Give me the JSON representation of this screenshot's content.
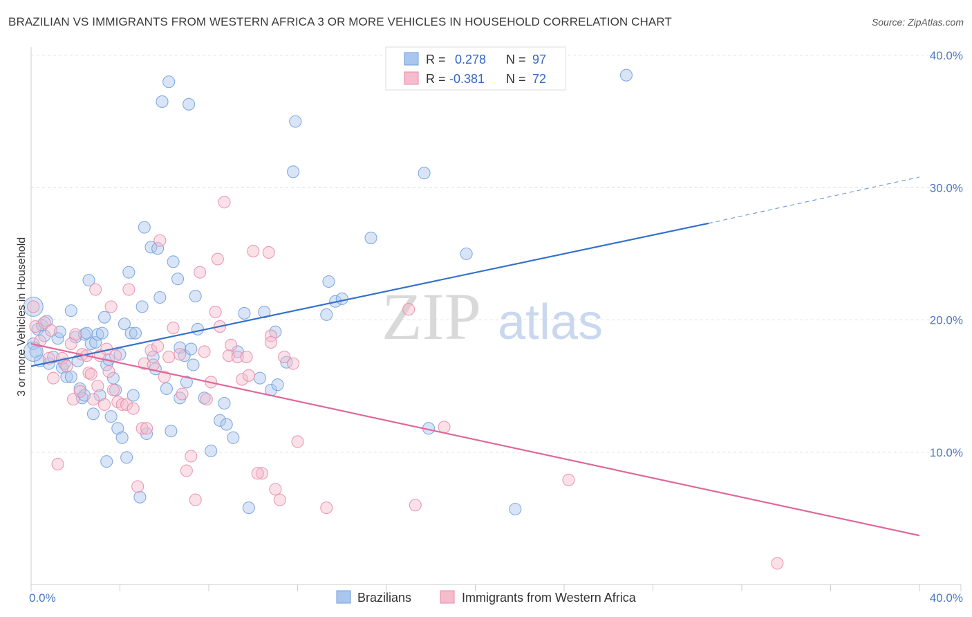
{
  "chart_data": {
    "type": "scatter",
    "title": "BRAZILIAN VS IMMIGRANTS FROM WESTERN AFRICA 3 OR MORE VEHICLES IN HOUSEHOLD CORRELATION CHART",
    "source": "Source: ZipAtlas.com",
    "ylabel": "3 or more Vehicles in Household",
    "xlim": [
      0,
      40
    ],
    "ylim": [
      0,
      40
    ],
    "x_tick_labels": [
      "0.0%",
      "40.0%"
    ],
    "y_tick_labels": [
      "10.0%",
      "20.0%",
      "30.0%",
      "40.0%"
    ],
    "y_ticks": [
      10,
      20,
      30,
      40
    ],
    "watermark": {
      "zip": "ZIP",
      "atlas": "atlas"
    },
    "legend": {
      "r_label": "R =",
      "n_label": "N =",
      "entries": [
        {
          "r": "0.278",
          "n": "97"
        },
        {
          "r": "-0.381",
          "n": "72"
        }
      ]
    },
    "series": [
      {
        "name": "Brazilians",
        "color": "#6f9fdc",
        "fill": "#aac6ee",
        "trend": {
          "x0": 0,
          "y0": 16.5,
          "x1": 30.5,
          "y1": 27.3,
          "dash_to_x": 40,
          "dash_to_y": 30.8
        },
        "points": [
          [
            0.1,
            18.2
          ],
          [
            0.2,
            17.6
          ],
          [
            0.3,
            19.3
          ],
          [
            0.5,
            19.6
          ],
          [
            0.6,
            18.8
          ],
          [
            0.7,
            19.9
          ],
          [
            0.8,
            16.7
          ],
          [
            1.0,
            17.2
          ],
          [
            1.2,
            18.6
          ],
          [
            1.3,
            19.1
          ],
          [
            1.4,
            16.4
          ],
          [
            1.5,
            16.7
          ],
          [
            1.6,
            15.7
          ],
          [
            1.8,
            15.7
          ],
          [
            1.8,
            20.7
          ],
          [
            2.0,
            18.7
          ],
          [
            2.1,
            16.9
          ],
          [
            2.2,
            14.8
          ],
          [
            2.3,
            14.1
          ],
          [
            2.4,
            14.3
          ],
          [
            2.4,
            18.9
          ],
          [
            2.5,
            19.0
          ],
          [
            2.6,
            23.0
          ],
          [
            2.7,
            18.2
          ],
          [
            2.8,
            12.9
          ],
          [
            2.9,
            18.3
          ],
          [
            3.0,
            18.9
          ],
          [
            3.1,
            14.3
          ],
          [
            3.2,
            19.0
          ],
          [
            3.3,
            20.2
          ],
          [
            3.4,
            16.6
          ],
          [
            3.4,
            9.3
          ],
          [
            3.5,
            17.0
          ],
          [
            3.6,
            12.7
          ],
          [
            3.7,
            15.6
          ],
          [
            3.8,
            14.7
          ],
          [
            3.9,
            11.8
          ],
          [
            4.0,
            17.4
          ],
          [
            4.1,
            11.1
          ],
          [
            4.2,
            19.7
          ],
          [
            4.3,
            9.6
          ],
          [
            4.4,
            23.6
          ],
          [
            4.5,
            19.0
          ],
          [
            4.6,
            14.3
          ],
          [
            4.7,
            19.0
          ],
          [
            4.9,
            6.6
          ],
          [
            5.0,
            21.0
          ],
          [
            5.1,
            27.0
          ],
          [
            5.2,
            11.4
          ],
          [
            5.4,
            25.5
          ],
          [
            5.5,
            17.2
          ],
          [
            5.6,
            16.3
          ],
          [
            5.7,
            25.4
          ],
          [
            5.8,
            21.7
          ],
          [
            5.9,
            36.5
          ],
          [
            6.1,
            14.8
          ],
          [
            6.2,
            38.0
          ],
          [
            6.3,
            11.6
          ],
          [
            6.4,
            24.4
          ],
          [
            6.6,
            23.1
          ],
          [
            6.7,
            17.9
          ],
          [
            6.9,
            17.3
          ],
          [
            7.0,
            15.3
          ],
          [
            7.1,
            36.3
          ],
          [
            7.2,
            17.8
          ],
          [
            7.3,
            16.6
          ],
          [
            7.4,
            21.8
          ],
          [
            7.5,
            19.3
          ],
          [
            7.8,
            14.1
          ],
          [
            8.1,
            10.1
          ],
          [
            8.5,
            12.4
          ],
          [
            8.7,
            13.7
          ],
          [
            8.8,
            12.1
          ],
          [
            9.1,
            11.1
          ],
          [
            9.6,
            20.5
          ],
          [
            9.8,
            5.8
          ],
          [
            10.3,
            15.6
          ],
          [
            10.5,
            20.6
          ],
          [
            10.8,
            14.7
          ],
          [
            11.0,
            19.1
          ],
          [
            11.1,
            15.1
          ],
          [
            11.5,
            16.8
          ],
          [
            11.8,
            31.2
          ],
          [
            11.9,
            35.0
          ],
          [
            13.3,
            20.4
          ],
          [
            13.4,
            22.9
          ],
          [
            13.7,
            21.4
          ],
          [
            15.3,
            26.2
          ],
          [
            17.7,
            31.1
          ],
          [
            17.9,
            11.8
          ],
          [
            19.6,
            25.0
          ],
          [
            21.8,
            5.7
          ],
          [
            26.8,
            38.5
          ],
          [
            14.0,
            21.6
          ],
          [
            9.3,
            17.6
          ],
          [
            6.7,
            14.1
          ],
          [
            0.4,
            16.9
          ]
        ],
        "large_points": [
          [
            0.1,
            21.0
          ],
          [
            0.1,
            17.6
          ]
        ]
      },
      {
        "name": "Immigrants from Western Africa",
        "color": "#e98aaa",
        "fill": "#f4bccd",
        "trend": {
          "x0": 0,
          "y0": 18.2,
          "x1": 40,
          "y1": 3.7
        },
        "points": [
          [
            0.2,
            19.5
          ],
          [
            0.4,
            18.4
          ],
          [
            0.6,
            19.8
          ],
          [
            0.8,
            17.1
          ],
          [
            0.9,
            19.2
          ],
          [
            1.0,
            15.6
          ],
          [
            1.2,
            9.1
          ],
          [
            1.4,
            17.1
          ],
          [
            1.6,
            16.5
          ],
          [
            1.8,
            18.2
          ],
          [
            1.9,
            14.0
          ],
          [
            2.0,
            18.9
          ],
          [
            2.2,
            14.6
          ],
          [
            2.3,
            17.4
          ],
          [
            2.5,
            17.3
          ],
          [
            2.6,
            16.0
          ],
          [
            2.7,
            15.9
          ],
          [
            2.8,
            14.0
          ],
          [
            2.9,
            22.3
          ],
          [
            3.0,
            15.0
          ],
          [
            3.1,
            17.3
          ],
          [
            3.3,
            13.6
          ],
          [
            3.4,
            17.8
          ],
          [
            3.5,
            16.1
          ],
          [
            3.6,
            21.0
          ],
          [
            3.7,
            14.7
          ],
          [
            3.8,
            17.3
          ],
          [
            3.9,
            13.8
          ],
          [
            4.1,
            13.6
          ],
          [
            4.3,
            13.6
          ],
          [
            4.4,
            22.3
          ],
          [
            4.6,
            13.3
          ],
          [
            4.8,
            7.4
          ],
          [
            5.0,
            11.8
          ],
          [
            5.1,
            16.7
          ],
          [
            5.2,
            11.8
          ],
          [
            5.4,
            17.7
          ],
          [
            5.5,
            16.6
          ],
          [
            5.7,
            18.0
          ],
          [
            5.8,
            26.0
          ],
          [
            6.0,
            15.7
          ],
          [
            6.2,
            17.2
          ],
          [
            6.4,
            19.4
          ],
          [
            6.7,
            17.4
          ],
          [
            6.8,
            14.4
          ],
          [
            7.0,
            8.6
          ],
          [
            7.2,
            9.7
          ],
          [
            7.4,
            6.4
          ],
          [
            7.6,
            23.6
          ],
          [
            7.8,
            17.6
          ],
          [
            7.9,
            14.0
          ],
          [
            8.1,
            15.3
          ],
          [
            8.3,
            20.6
          ],
          [
            8.4,
            24.6
          ],
          [
            8.7,
            28.9
          ],
          [
            8.9,
            17.3
          ],
          [
            9.0,
            18.1
          ],
          [
            9.3,
            17.2
          ],
          [
            9.5,
            15.5
          ],
          [
            9.8,
            15.8
          ],
          [
            10.0,
            25.2
          ],
          [
            10.4,
            8.4
          ],
          [
            10.7,
            25.1
          ],
          [
            10.8,
            18.8
          ],
          [
            11.0,
            7.2
          ],
          [
            11.2,
            6.4
          ],
          [
            11.4,
            17.2
          ],
          [
            11.8,
            16.7
          ],
          [
            12.0,
            10.8
          ],
          [
            13.3,
            5.8
          ],
          [
            17.0,
            20.8
          ],
          [
            17.3,
            6.0
          ],
          [
            18.6,
            11.9
          ],
          [
            24.2,
            7.9
          ],
          [
            33.6,
            1.6
          ],
          [
            0.1,
            21.0
          ],
          [
            10.8,
            18.3
          ],
          [
            9.7,
            17.2
          ],
          [
            8.5,
            19.5
          ],
          [
            10.2,
            8.4
          ]
        ]
      }
    ]
  }
}
